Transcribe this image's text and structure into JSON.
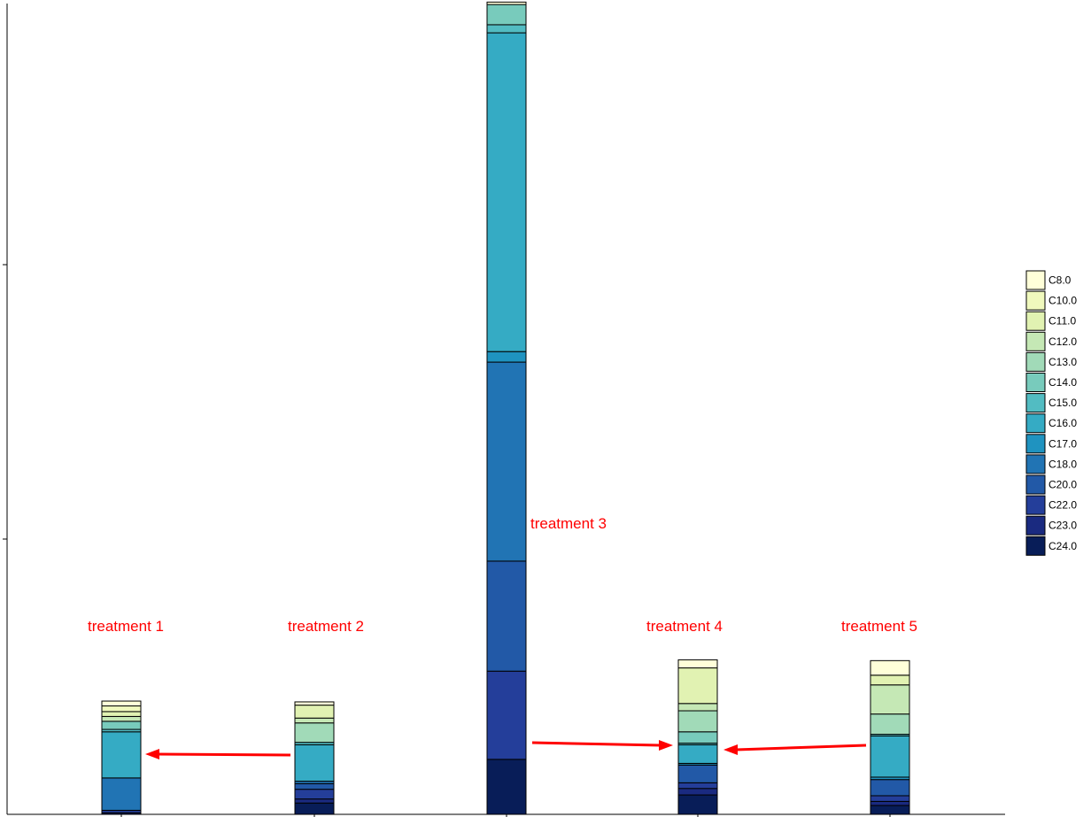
{
  "chart_data": {
    "type": "bar",
    "stacked": true,
    "title": "",
    "xlabel": "",
    "ylabel": "",
    "ylim": [
      0,
      100
    ],
    "grid": false,
    "legend_position": "right",
    "categories": [
      "treatment 1",
      "treatment 2",
      "treatment 3",
      "treatment 4",
      "treatment 5"
    ],
    "series": [
      {
        "name": "C24.0",
        "values": [
          0.2,
          1.4,
          6.8,
          2.4,
          1.1
        ]
      },
      {
        "name": "C23.0",
        "values": [
          0.0,
          0.5,
          0.0,
          0.8,
          0.5
        ]
      },
      {
        "name": "C22.0",
        "values": [
          0.3,
          1.2,
          10.9,
          0.7,
          0.7
        ]
      },
      {
        "name": "C20.0",
        "values": [
          0.0,
          0.7,
          13.6,
          2.2,
          2.0
        ]
      },
      {
        "name": "C18.0",
        "values": [
          4.0,
          0.3,
          24.6,
          0.0,
          0.0
        ]
      },
      {
        "name": "C17.0",
        "values": [
          0.0,
          0.0,
          1.3,
          0.2,
          0.3
        ]
      },
      {
        "name": "C16.0",
        "values": [
          5.7,
          4.5,
          39.4,
          2.3,
          5.1
        ]
      },
      {
        "name": "C15.0",
        "values": [
          0.3,
          0.3,
          1.0,
          0.2,
          0.2
        ]
      },
      {
        "name": "C14.0",
        "values": [
          1.0,
          0.0,
          2.5,
          1.4,
          0.0
        ]
      },
      {
        "name": "C13.0",
        "values": [
          0.0,
          2.4,
          0.0,
          2.6,
          2.5
        ]
      },
      {
        "name": "C12.0",
        "values": [
          0.6,
          0.6,
          0.0,
          0.9,
          3.6
        ]
      },
      {
        "name": "C11.0",
        "values": [
          0.6,
          1.6,
          0.0,
          4.4,
          1.2
        ]
      },
      {
        "name": "C10.0",
        "values": [
          0.7,
          0.0,
          0.0,
          0.0,
          0.0
        ]
      },
      {
        "name": "C8.0",
        "values": [
          0.6,
          0.4,
          0.3,
          1.0,
          1.8
        ]
      }
    ],
    "colors": {
      "C8.0": "#ffffd9",
      "C10.0": "#f0f9bd",
      "C11.0": "#e1f2b2",
      "C12.0": "#c5e8b5",
      "C13.0": "#a1dab8",
      "C14.0": "#78cbbc",
      "C15.0": "#52bcc2",
      "C16.0": "#35abc4",
      "C17.0": "#1f93c0",
      "C18.0": "#2174b4",
      "C20.0": "#2259a7",
      "C22.0": "#243e9a",
      "C23.0": "#1a2a80",
      "C24.0": "#081d58"
    },
    "legend_order": [
      "C8.0",
      "C10.0",
      "C11.0",
      "C12.0",
      "C13.0",
      "C14.0",
      "C15.0",
      "C16.0",
      "C17.0",
      "C18.0",
      "C20.0",
      "C22.0",
      "C23.0",
      "C24.0"
    ],
    "annotations": [
      {
        "text": "treatment 1"
      },
      {
        "text": "treatment 2"
      },
      {
        "text": "treatment 3"
      },
      {
        "text": "treatment 4"
      },
      {
        "text": "treatment 5"
      }
    ],
    "arrows": [
      {
        "from": "treatment 2",
        "to": "treatment 1",
        "color": "#ff0000"
      },
      {
        "from": "treatment 3",
        "to": "treatment 4",
        "color": "#ff0000"
      },
      {
        "from": "treatment 5",
        "to": "treatment 4",
        "color": "#ff0000"
      }
    ]
  }
}
